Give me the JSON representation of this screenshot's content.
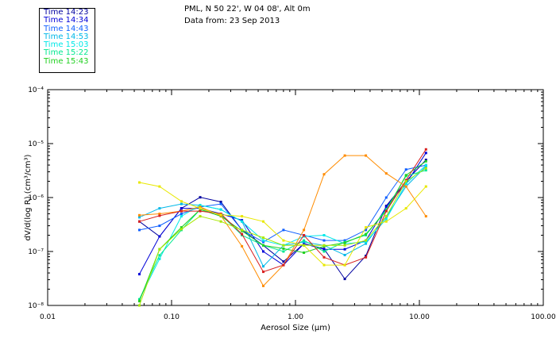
{
  "header": {
    "line1": "PML, N 50 22', W 04 08', Alt 0m",
    "line2": "Data from: 23 Sep 2013"
  },
  "chart_data": {
    "type": "line",
    "xlabel": "Aerosol Size (µm)",
    "ylabel": "dV/d(log R) (cm³/cm³)",
    "xscale": "log",
    "yscale": "log",
    "xlim": [
      0.01,
      100
    ],
    "ylim": [
      1e-08,
      0.0001
    ],
    "x_tick_labels": [
      "0.01",
      "0.10",
      "1.00",
      "10.00",
      "100.00"
    ],
    "y_tick_labels": [
      "10⁻⁸",
      "10⁻⁷",
      "10⁻⁶",
      "10⁻⁵",
      "10⁻⁴"
    ],
    "legend_position": "top-left, outside plot",
    "x": [
      0.055,
      0.08,
      0.12,
      0.17,
      0.25,
      0.37,
      0.55,
      0.8,
      1.17,
      1.7,
      2.5,
      3.7,
      5.4,
      7.8,
      11.3
    ],
    "series": [
      {
        "name": "Time 14:23",
        "color": "#0000a0",
        "values": [
          3.6e-07,
          1.9e-07,
          6.3e-07,
          1.01e-06,
          8.3e-07,
          2.5e-07,
          1.3e-07,
          6.5e-08,
          1.4e-07,
          1.12e-07,
          3.1e-08,
          8.3e-08,
          7e-07,
          2e-06,
          5e-06
        ]
      },
      {
        "name": "Time 14:34",
        "color": "#0000d8",
        "values": [
          3.8e-08,
          1.9e-07,
          6.3e-07,
          6.3e-07,
          5e-07,
          3.8e-07,
          1e-07,
          5.6e-08,
          1.4e-07,
          1.1e-07,
          1.1e-07,
          1.6e-07,
          6.7e-07,
          1.82e-06,
          6.7e-06
        ]
      },
      {
        "name": "Time 14:43",
        "color": "#1060ff",
        "values": [
          2.5e-07,
          3e-07,
          5e-07,
          6.7e-07,
          7.6e-07,
          2.5e-07,
          1.5e-07,
          2.5e-07,
          2e-07,
          1.6e-07,
          1.6e-07,
          2.5e-07,
          1e-06,
          3.3e-06,
          4e-06
        ]
      },
      {
        "name": "Time 14:53",
        "color": "#00b8e8",
        "values": [
          4.3e-07,
          6.3e-07,
          7.6e-07,
          7.2e-07,
          6e-07,
          3.6e-07,
          5.3e-08,
          1.3e-07,
          1.5e-07,
          1.3e-07,
          8.6e-08,
          1.4e-07,
          4.4e-07,
          1.6e-06,
          3.8e-06
        ]
      },
      {
        "name": "Time 15:03",
        "color": "#00e8e8",
        "values": [
          1.3e-08,
          7.3e-08,
          4.5e-07,
          7.2e-07,
          6e-07,
          3.6e-07,
          1.6e-07,
          1.3e-07,
          1.9e-07,
          2e-07,
          1.4e-07,
          1.5e-07,
          4e-07,
          1.8e-06,
          4e-06
        ]
      },
      {
        "name": "Time 15:22",
        "color": "#00e890",
        "values": [
          1.3e-08,
          8.5e-08,
          2.5e-07,
          6e-07,
          4.8e-07,
          2e-07,
          1.3e-07,
          1e-07,
          1.6e-07,
          1e-07,
          1.5e-07,
          2e-07,
          6e-07,
          2.5e-06,
          3.2e-06
        ]
      },
      {
        "name": "Time 15:43",
        "color": "#20d020",
        "values": [
          1.2e-08,
          1.1e-07,
          2.8e-07,
          6e-07,
          4.5e-07,
          2.4e-07,
          1.3e-07,
          1.13e-07,
          9.5e-08,
          1.25e-07,
          1.45e-07,
          2.1e-07,
          5.6e-07,
          2.6e-06,
          4.7e-06
        ]
      },
      {
        "name": "",
        "color": "#ff8c00",
        "values": [
          4.7e-07,
          5e-07,
          5.6e-07,
          6.7e-07,
          4.6e-07,
          1.25e-07,
          2.3e-08,
          5.6e-08,
          2.5e-07,
          2.7e-06,
          6e-06,
          6e-06,
          2.8e-06,
          1.6e-06,
          4.5e-07
        ]
      },
      {
        "name": "",
        "color": "#d82020",
        "values": [
          3.6e-07,
          4.6e-07,
          5.6e-07,
          5.6e-07,
          5e-07,
          2.1e-07,
          4.2e-08,
          5.6e-08,
          2e-07,
          7.8e-08,
          5.6e-08,
          7.8e-08,
          5.6e-07,
          2.1e-06,
          7.8e-06
        ]
      },
      {
        "name": "",
        "color": "#e8e800",
        "values": [
          1.9e-06,
          1.6e-06,
          8.5e-07,
          6.3e-07,
          4.8e-07,
          4.5e-07,
          3.6e-07,
          1.6e-07,
          1.3e-07,
          5.6e-08,
          5.6e-08,
          2.8e-07,
          3.6e-07,
          6.3e-07,
          1.6e-06
        ]
      },
      {
        "name": "",
        "color": "#a8e800",
        "values": [
          1e-08,
          1.1e-07,
          2.6e-07,
          4.5e-07,
          3.6e-07,
          2.5e-07,
          1.8e-07,
          1.3e-07,
          1.3e-07,
          1.3e-07,
          1.3e-07,
          1.6e-07,
          4.5e-07,
          2e-06,
          3.5e-06
        ]
      }
    ]
  }
}
